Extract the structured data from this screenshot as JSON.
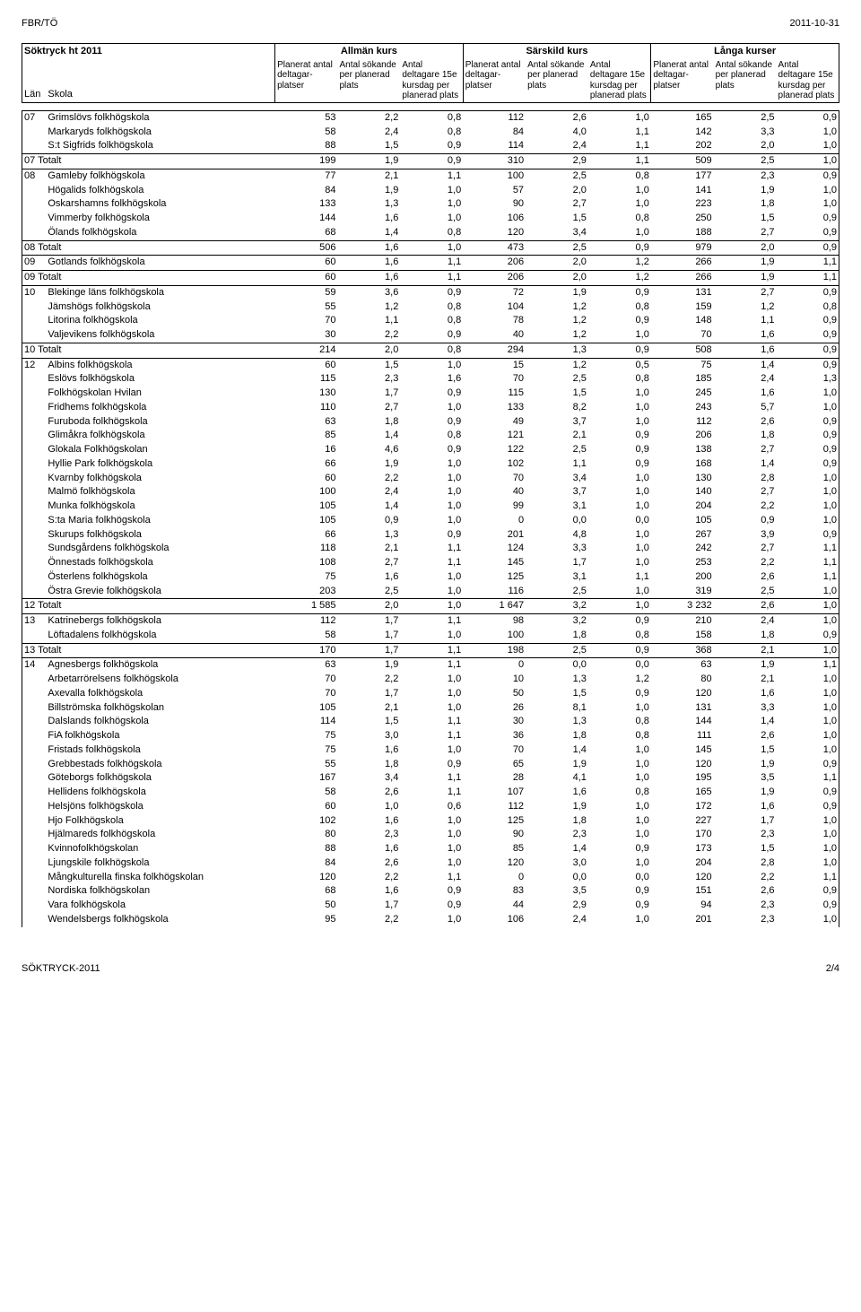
{
  "header": {
    "left": "FBR/TÖ",
    "right": "2011-10-31"
  },
  "footer": {
    "left": "SÖKTRYCK-2011",
    "right": "2/4"
  },
  "table": {
    "title": "Söktryck ht 2011",
    "groups": [
      "Allmän kurs",
      "Särskild kurs",
      "Långa kurser"
    ],
    "left_headers": [
      "Län",
      "Skola"
    ],
    "metric_headers": [
      "Planerat antal deltagar-platser",
      "Antal sökande per planerad plats",
      "Antal deltagare 15e kursdag per planerad plats"
    ],
    "blocks": [
      {
        "lan": "07",
        "rows": [
          [
            "Grimslövs folkhögskola",
            53,
            "2,2",
            "0,8",
            112,
            "2,6",
            "1,0",
            165,
            "2,5",
            "0,9"
          ],
          [
            "Markaryds folkhögskola",
            58,
            "2,4",
            "0,8",
            84,
            "4,0",
            "1,1",
            142,
            "3,3",
            "1,0"
          ],
          [
            "S:t Sigfrids folkhögskola",
            88,
            "1,5",
            "0,9",
            114,
            "2,4",
            "1,1",
            202,
            "2,0",
            "1,0"
          ]
        ],
        "total": [
          "07 Totalt",
          199,
          "1,9",
          "0,9",
          310,
          "2,9",
          "1,1",
          509,
          "2,5",
          "1,0"
        ]
      },
      {
        "lan": "08",
        "rows": [
          [
            "Gamleby folkhögskola",
            77,
            "2,1",
            "1,1",
            100,
            "2,5",
            "0,8",
            177,
            "2,3",
            "0,9"
          ],
          [
            "Högalids folkhögskola",
            84,
            "1,9",
            "1,0",
            57,
            "2,0",
            "1,0",
            141,
            "1,9",
            "1,0"
          ],
          [
            "Oskarshamns folkhögskola",
            133,
            "1,3",
            "1,0",
            90,
            "2,7",
            "1,0",
            223,
            "1,8",
            "1,0"
          ],
          [
            "Vimmerby folkhögskola",
            144,
            "1,6",
            "1,0",
            106,
            "1,5",
            "0,8",
            250,
            "1,5",
            "0,9"
          ],
          [
            "Ölands folkhögskola",
            68,
            "1,4",
            "0,8",
            120,
            "3,4",
            "1,0",
            188,
            "2,7",
            "0,9"
          ]
        ],
        "total": [
          "08 Totalt",
          506,
          "1,6",
          "1,0",
          473,
          "2,5",
          "0,9",
          979,
          "2,0",
          "0,9"
        ]
      },
      {
        "lan": "09",
        "rows": [
          [
            "Gotlands folkhögskola",
            60,
            "1,6",
            "1,1",
            206,
            "2,0",
            "1,2",
            266,
            "1,9",
            "1,1"
          ]
        ],
        "total": [
          "09 Totalt",
          60,
          "1,6",
          "1,1",
          206,
          "2,0",
          "1,2",
          266,
          "1,9",
          "1,1"
        ]
      },
      {
        "lan": "10",
        "rows": [
          [
            "Blekinge läns folkhögskola",
            59,
            "3,6",
            "0,9",
            72,
            "1,9",
            "0,9",
            131,
            "2,7",
            "0,9"
          ],
          [
            "Jämshögs folkhögskola",
            55,
            "1,2",
            "0,8",
            104,
            "1,2",
            "0,8",
            159,
            "1,2",
            "0,8"
          ],
          [
            "Litorina folkhögskola",
            70,
            "1,1",
            "0,8",
            78,
            "1,2",
            "0,9",
            148,
            "1,1",
            "0,9"
          ],
          [
            "Valjevikens folkhögskola",
            30,
            "2,2",
            "0,9",
            40,
            "1,2",
            "1,0",
            70,
            "1,6",
            "0,9"
          ]
        ],
        "total": [
          "10 Totalt",
          214,
          "2,0",
          "0,8",
          294,
          "1,3",
          "0,9",
          508,
          "1,6",
          "0,9"
        ]
      },
      {
        "lan": "12",
        "rows": [
          [
            "Albins folkhögskola",
            60,
            "1,5",
            "1,0",
            15,
            "1,2",
            "0,5",
            75,
            "1,4",
            "0,9"
          ],
          [
            "Eslövs folkhögskola",
            115,
            "2,3",
            "1,6",
            70,
            "2,5",
            "0,8",
            185,
            "2,4",
            "1,3"
          ],
          [
            "Folkhögskolan Hvilan",
            130,
            "1,7",
            "0,9",
            115,
            "1,5",
            "1,0",
            245,
            "1,6",
            "1,0"
          ],
          [
            "Fridhems folkhögskola",
            110,
            "2,7",
            "1,0",
            133,
            "8,2",
            "1,0",
            243,
            "5,7",
            "1,0"
          ],
          [
            "Furuboda folkhögskola",
            63,
            "1,8",
            "0,9",
            49,
            "3,7",
            "1,0",
            112,
            "2,6",
            "0,9"
          ],
          [
            "Glimåkra folkhögskola",
            85,
            "1,4",
            "0,8",
            121,
            "2,1",
            "0,9",
            206,
            "1,8",
            "0,9"
          ],
          [
            "Glokala Folkhögskolan",
            16,
            "4,6",
            "0,9",
            122,
            "2,5",
            "0,9",
            138,
            "2,7",
            "0,9"
          ],
          [
            "Hyllie Park folkhögskola",
            66,
            "1,9",
            "1,0",
            102,
            "1,1",
            "0,9",
            168,
            "1,4",
            "0,9"
          ],
          [
            "Kvarnby folkhögskola",
            60,
            "2,2",
            "1,0",
            70,
            "3,4",
            "1,0",
            130,
            "2,8",
            "1,0"
          ],
          [
            "Malmö folkhögskola",
            100,
            "2,4",
            "1,0",
            40,
            "3,7",
            "1,0",
            140,
            "2,7",
            "1,0"
          ],
          [
            "Munka folkhögskola",
            105,
            "1,4",
            "1,0",
            99,
            "3,1",
            "1,0",
            204,
            "2,2",
            "1,0"
          ],
          [
            "S:ta Maria folkhögskola",
            105,
            "0,9",
            "1,0",
            0,
            "0,0",
            "0,0",
            105,
            "0,9",
            "1,0"
          ],
          [
            "Skurups folkhögskola",
            66,
            "1,3",
            "0,9",
            201,
            "4,8",
            "1,0",
            267,
            "3,9",
            "0,9"
          ],
          [
            "Sundsgårdens folkhögskola",
            118,
            "2,1",
            "1,1",
            124,
            "3,3",
            "1,0",
            242,
            "2,7",
            "1,1"
          ],
          [
            "Önnestads folkhögskola",
            108,
            "2,7",
            "1,1",
            145,
            "1,7",
            "1,0",
            253,
            "2,2",
            "1,1"
          ],
          [
            "Österlens folkhögskola",
            75,
            "1,6",
            "1,0",
            125,
            "3,1",
            "1,1",
            200,
            "2,6",
            "1,1"
          ],
          [
            "Östra Grevie folkhögskola",
            203,
            "2,5",
            "1,0",
            116,
            "2,5",
            "1,0",
            319,
            "2,5",
            "1,0"
          ]
        ],
        "total": [
          "12 Totalt",
          "1 585",
          "2,0",
          "1,0",
          "1 647",
          "3,2",
          "1,0",
          "3 232",
          "2,6",
          "1,0"
        ]
      },
      {
        "lan": "13",
        "rows": [
          [
            "Katrinebergs folkhögskola",
            112,
            "1,7",
            "1,1",
            98,
            "3,2",
            "0,9",
            210,
            "2,4",
            "1,0"
          ],
          [
            "Löftadalens folkhögskola",
            58,
            "1,7",
            "1,0",
            100,
            "1,8",
            "0,8",
            158,
            "1,8",
            "0,9"
          ]
        ],
        "total": [
          "13 Totalt",
          170,
          "1,7",
          "1,1",
          198,
          "2,5",
          "0,9",
          368,
          "2,1",
          "1,0"
        ]
      },
      {
        "lan": "14",
        "rows": [
          [
            "Agnesbergs folkhögskola",
            63,
            "1,9",
            "1,1",
            0,
            "0,0",
            "0,0",
            63,
            "1,9",
            "1,1"
          ],
          [
            "Arbetarrörelsens folkhögskola",
            70,
            "2,2",
            "1,0",
            10,
            "1,3",
            "1,2",
            80,
            "2,1",
            "1,0"
          ],
          [
            "Axevalla folkhögskola",
            70,
            "1,7",
            "1,0",
            50,
            "1,5",
            "0,9",
            120,
            "1,6",
            "1,0"
          ],
          [
            "Billströmska folkhögskolan",
            105,
            "2,1",
            "1,0",
            26,
            "8,1",
            "1,0",
            131,
            "3,3",
            "1,0"
          ],
          [
            "Dalslands folkhögskola",
            114,
            "1,5",
            "1,1",
            30,
            "1,3",
            "0,8",
            144,
            "1,4",
            "1,0"
          ],
          [
            "FiA folkhögskola",
            75,
            "3,0",
            "1,1",
            36,
            "1,8",
            "0,8",
            111,
            "2,6",
            "1,0"
          ],
          [
            "Fristads folkhögskola",
            75,
            "1,6",
            "1,0",
            70,
            "1,4",
            "1,0",
            145,
            "1,5",
            "1,0"
          ],
          [
            "Grebbestads folkhögskola",
            55,
            "1,8",
            "0,9",
            65,
            "1,9",
            "1,0",
            120,
            "1,9",
            "0,9"
          ],
          [
            "Göteborgs folkhögskola",
            167,
            "3,4",
            "1,1",
            28,
            "4,1",
            "1,0",
            195,
            "3,5",
            "1,1"
          ],
          [
            "Hellidens folkhögskola",
            58,
            "2,6",
            "1,1",
            107,
            "1,6",
            "0,8",
            165,
            "1,9",
            "0,9"
          ],
          [
            "Helsjöns folkhögskola",
            60,
            "1,0",
            "0,6",
            112,
            "1,9",
            "1,0",
            172,
            "1,6",
            "0,9"
          ],
          [
            "Hjo Folkhögskola",
            102,
            "1,6",
            "1,0",
            125,
            "1,8",
            "1,0",
            227,
            "1,7",
            "1,0"
          ],
          [
            "Hjälmareds folkhögskola",
            80,
            "2,3",
            "1,0",
            90,
            "2,3",
            "1,0",
            170,
            "2,3",
            "1,0"
          ],
          [
            "Kvinnofolkhögskolan",
            88,
            "1,6",
            "1,0",
            85,
            "1,4",
            "0,9",
            173,
            "1,5",
            "1,0"
          ],
          [
            "Ljungskile folkhögskola",
            84,
            "2,6",
            "1,0",
            120,
            "3,0",
            "1,0",
            204,
            "2,8",
            "1,0"
          ],
          [
            "Mångkulturella finska folkhögskolan",
            120,
            "2,2",
            "1,1",
            0,
            "0,0",
            "0,0",
            120,
            "2,2",
            "1,1"
          ],
          [
            "Nordiska folkhögskolan",
            68,
            "1,6",
            "0,9",
            83,
            "3,5",
            "0,9",
            151,
            "2,6",
            "0,9"
          ],
          [
            "Vara folkhögskola",
            50,
            "1,7",
            "0,9",
            44,
            "2,9",
            "0,9",
            94,
            "2,3",
            "0,9"
          ],
          [
            "Wendelsbergs folkhögskola",
            95,
            "2,2",
            "1,0",
            106,
            "2,4",
            "1,0",
            201,
            "2,3",
            "1,0"
          ]
        ],
        "total": null
      }
    ]
  }
}
